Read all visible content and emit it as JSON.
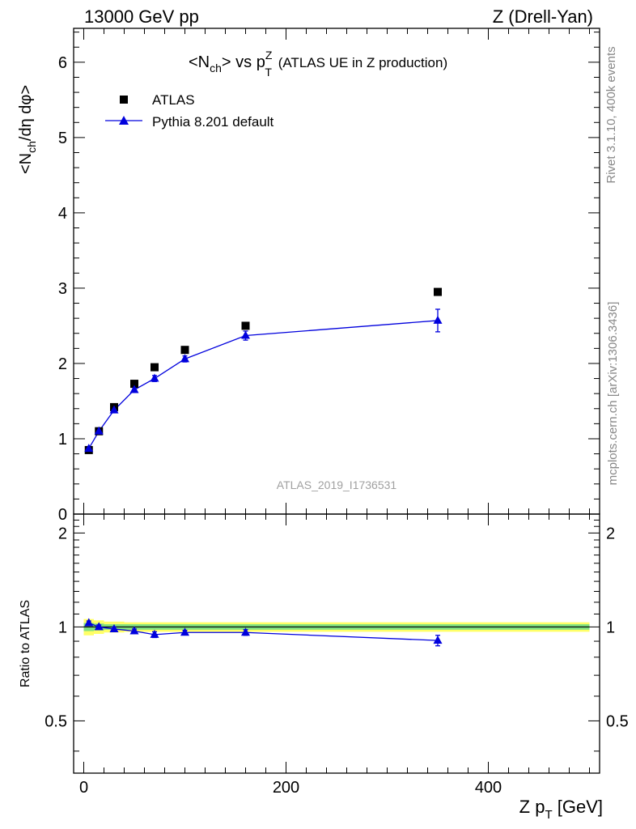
{
  "header": {
    "left": "13000 GeV pp",
    "right": "Z (Drell-Yan)"
  },
  "title": {
    "main": "<N",
    "sub1": "ch",
    "mid": "> vs p",
    "sup": "Z",
    "sub2": "T",
    "rest": " (ATLAS UE in Z production)"
  },
  "ylabel_main": {
    "p1": "<N",
    "sub": "ch",
    "p2": "/dη dφ>"
  },
  "ylabel_ratio": "Ratio to ATLAS",
  "xlabel": {
    "p1": "Z p",
    "sub": "T",
    "p2": " [GeV]"
  },
  "legend": {
    "atlas": "ATLAS",
    "pythia": "Pythia 8.201 default"
  },
  "watermark": "ATLAS_2019_I1736531",
  "side_texts": {
    "rivet": "Rivet 3.1.10,  400k events",
    "mcplots": "mcplots.cern.ch [arXiv:1306.3436]"
  },
  "colors": {
    "data": "#000000",
    "mc": "#0000dd",
    "band_inner": "#7fe07f",
    "band_outer": "#ffff66"
  },
  "chart_data": {
    "type": "scatter",
    "x_ticks": [
      "0",
      "200",
      "400"
    ],
    "x_tick_values": [
      0,
      200,
      400
    ],
    "xlim": [
      -10,
      510
    ],
    "main": {
      "ylim": [
        0,
        6.45
      ],
      "y_ticks": [
        "0",
        "1",
        "2",
        "3",
        "4",
        "5",
        "6"
      ],
      "y_tick_values": [
        0,
        1,
        2,
        3,
        4,
        5,
        6
      ],
      "series": [
        {
          "name": "ATLAS",
          "marker": "square",
          "x": [
            5,
            15,
            30,
            50,
            70,
            100,
            160,
            350
          ],
          "y": [
            0.85,
            1.1,
            1.42,
            1.73,
            1.95,
            2.18,
            2.5,
            2.95
          ]
        },
        {
          "name": "Pythia 8.201 default",
          "marker": "triangle",
          "x": [
            5,
            15,
            30,
            50,
            70,
            100,
            160,
            350
          ],
          "y": [
            0.87,
            1.1,
            1.38,
            1.65,
            1.8,
            2.06,
            2.37,
            2.57
          ],
          "err": [
            0.02,
            0.02,
            0.03,
            0.03,
            0.04,
            0.04,
            0.06,
            0.15
          ]
        }
      ]
    },
    "ratio": {
      "ylim": [
        0.34,
        2.3
      ],
      "log_scale": true,
      "y_ticks": [
        "0.5",
        "1",
        "2"
      ],
      "y_tick_values": [
        0.5,
        1,
        2
      ],
      "series": [
        {
          "name": "Pythia 8.201 default",
          "x": [
            5,
            15,
            30,
            50,
            70,
            100,
            160,
            350
          ],
          "y": [
            1.03,
            1.0,
            0.985,
            0.97,
            0.945,
            0.96,
            0.96,
            0.905
          ],
          "err": [
            0.015,
            0.015,
            0.015,
            0.015,
            0.02,
            0.015,
            0.02,
            0.035
          ]
        }
      ],
      "band": {
        "x_edges": [
          0,
          10,
          20,
          40,
          60,
          80,
          120,
          200,
          500
        ],
        "inner": [
          0.03,
          0.025,
          0.02,
          0.02,
          0.02,
          0.02,
          0.02,
          0.02
        ],
        "outer": [
          0.06,
          0.05,
          0.04,
          0.035,
          0.035,
          0.035,
          0.035,
          0.035
        ]
      }
    }
  }
}
